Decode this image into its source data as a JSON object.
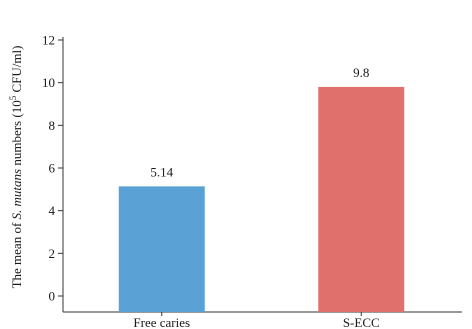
{
  "chart_data": {
    "type": "bar",
    "categories": [
      "Free caries",
      "S-ECC"
    ],
    "values": [
      5.14,
      9.8
    ],
    "data_labels": [
      "5.14",
      "9.8"
    ],
    "colors": [
      "#5aa1d6",
      "#e0706b"
    ],
    "title": "",
    "xlabel": "",
    "ylabel": {
      "prefix": "The mean of ",
      "italic": "S. mutans",
      "mid": " numbers (10",
      "superscript": "5",
      "suffix": " CFU/ml)"
    },
    "ylim": [
      0,
      12
    ],
    "yticks": [
      "0",
      "2",
      "4",
      "6",
      "8",
      "10",
      "12"
    ],
    "grid": false,
    "legend": "none"
  }
}
